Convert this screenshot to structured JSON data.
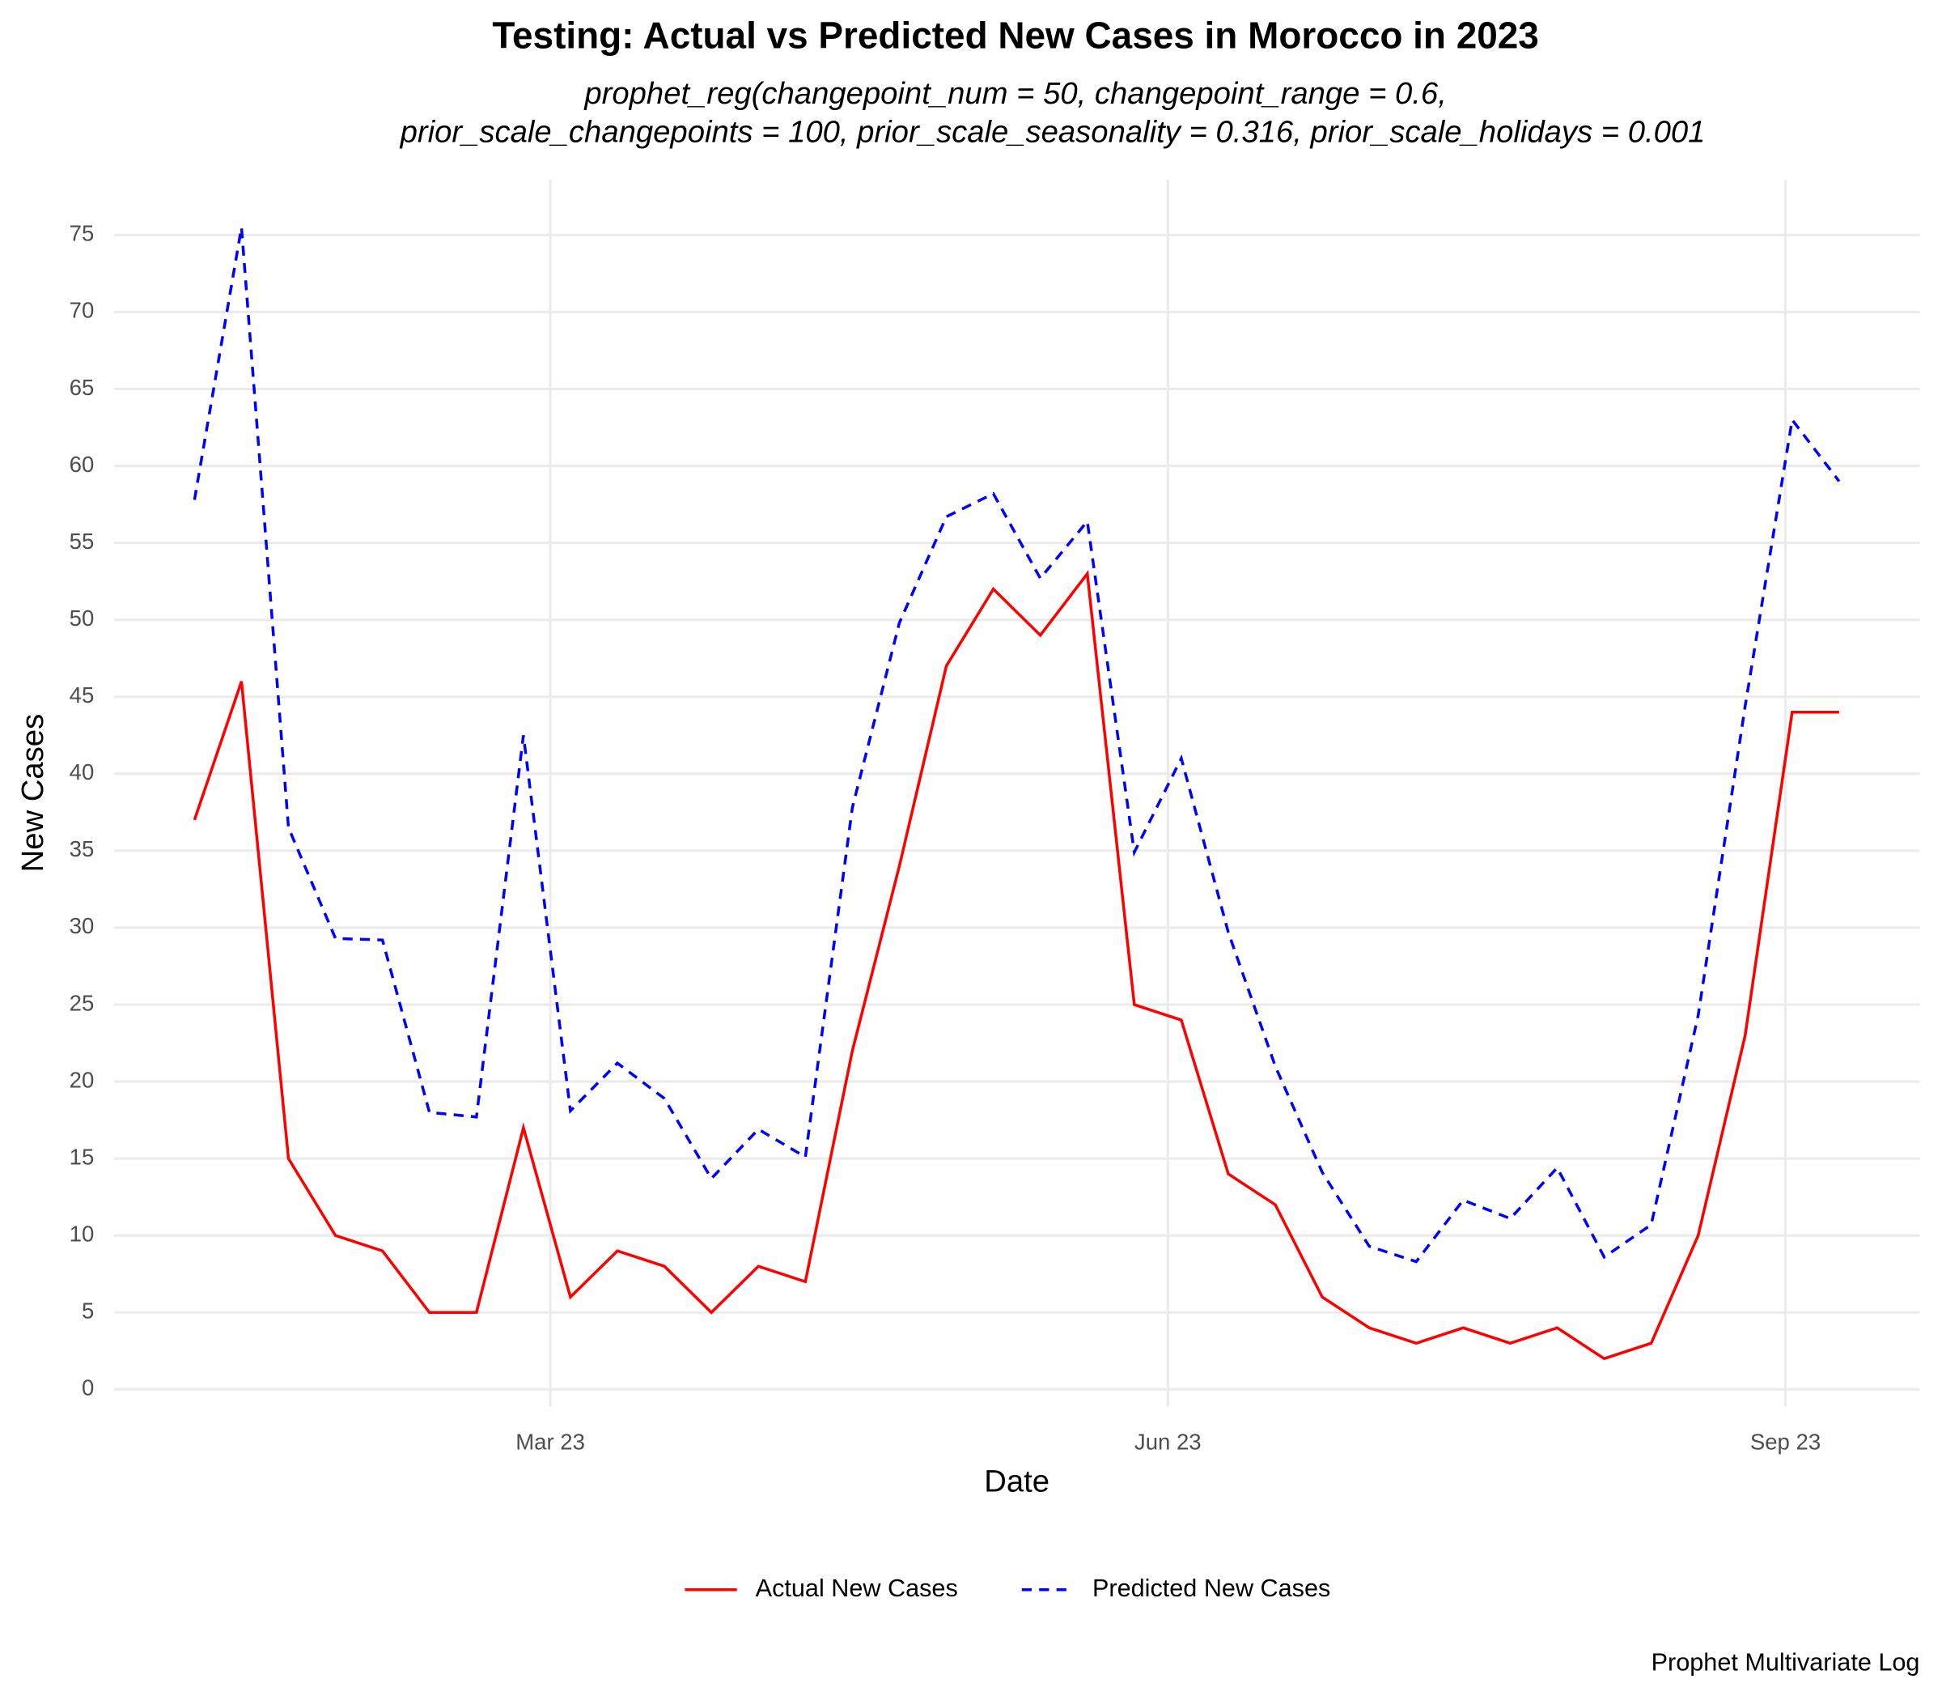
{
  "chart_data": {
    "type": "line",
    "title": "Testing: Actual vs Predicted New Cases in Morocco in 2023",
    "subtitle": [
      "prophet_reg(changepoint_num = 50, changepoint_range = 0.6,",
      "prior_scale_changepoints = 100, prior_scale_seasonality = 0.316, prior_scale_holidays = 0.001"
    ],
    "caption": "Prophet Multivariate Log",
    "x_label": "Date",
    "y_label": "New Cases",
    "x": [
      7,
      14,
      21,
      28,
      35,
      42,
      49,
      56,
      63,
      70,
      77,
      84,
      91,
      98,
      105,
      112,
      119,
      126,
      133,
      140,
      147,
      154,
      161,
      168,
      175,
      182,
      189,
      196,
      203,
      210,
      217,
      224,
      231,
      238,
      245,
      252
    ],
    "series": [
      {
        "name": "Actual New Cases",
        "color": "#ff0000",
        "dash": false,
        "values": [
          37,
          46,
          15,
          10,
          9,
          5,
          5,
          17,
          6,
          9,
          8,
          5,
          8,
          7,
          22,
          34,
          47,
          52,
          49,
          53,
          25,
          24,
          14,
          12,
          6,
          4,
          3,
          4,
          3,
          4,
          2,
          3,
          10,
          23,
          44,
          44
        ]
      },
      {
        "name": "Predicted New Cases",
        "color": "#0000ff",
        "dash": true,
        "values": [
          57.8,
          75.5,
          36.5,
          29.3,
          29.2,
          18,
          17.7,
          42.5,
          18.1,
          21.2,
          18.9,
          13.7,
          16.9,
          15.1,
          37.8,
          49.8,
          56.7,
          58.2,
          52.7,
          56.4,
          34.9,
          41,
          29.7,
          21,
          14.1,
          9.3,
          8.3,
          12.3,
          11.1,
          14.4,
          8.6,
          10.7,
          24.3,
          44.4,
          63,
          59
        ]
      }
    ],
    "xlim": [
      -5,
      264
    ],
    "xticks": [
      {
        "value": 60,
        "label": "Mar 23"
      },
      {
        "value": 152,
        "label": "Jun 23"
      },
      {
        "value": 244,
        "label": "Sep 23"
      }
    ],
    "ylim": [
      -1.1,
      78.6
    ],
    "yticks": [
      0,
      5,
      10,
      15,
      20,
      25,
      30,
      35,
      40,
      45,
      50,
      55,
      60,
      65,
      70,
      75
    ],
    "grid": true,
    "legend": "bottom"
  }
}
